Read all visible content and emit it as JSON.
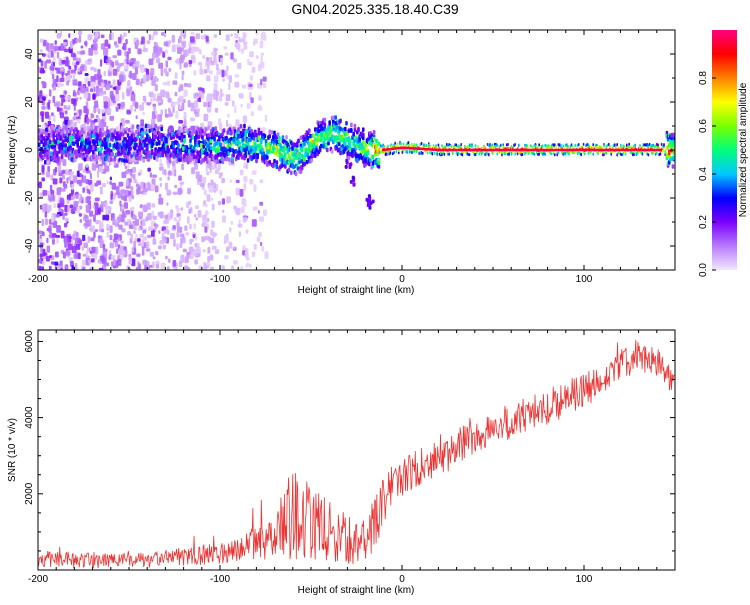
{
  "title": "GN04.2025.335.18.40.C39",
  "chart_data": [
    {
      "type": "heatmap",
      "title": "GN04.2025.335.18.40.C39",
      "xlabel": "Height of straight line (km)",
      "ylabel": "Frequency (Hz)",
      "xlim": [
        -200,
        150
      ],
      "ylim": [
        -50,
        50
      ],
      "xticks": [
        -200,
        -100,
        0,
        100
      ],
      "xtick_labels": [
        "-200",
        "-100",
        "0",
        "100"
      ],
      "yticks": [
        -40,
        -20,
        0,
        20,
        40
      ],
      "ytick_labels": [
        "-40",
        "-20",
        "0",
        "20",
        "40"
      ],
      "colorbar": {
        "label": "Normalized spectral amplitude",
        "range": [
          0,
          1
        ],
        "ticks": [
          0.0,
          0.2,
          0.4,
          0.6,
          0.8
        ],
        "tick_labels": [
          "0.0",
          "0.2",
          "0.4",
          "0.6",
          "0.8"
        ],
        "colors": [
          "#f2e6ff",
          "#b87aff",
          "#7a00ff",
          "#0000ff",
          "#00c8ff",
          "#00ff7a",
          "#7aff00",
          "#ffff00",
          "#ff8000",
          "#ff0000",
          "#ff0080"
        ]
      },
      "ridge": {
        "x": [
          -200,
          -180,
          -160,
          -140,
          -120,
          -100,
          -90,
          -80,
          -70,
          -60,
          -55,
          -50,
          -45,
          -40,
          -35,
          -30,
          -25,
          -20,
          -10,
          0,
          20,
          50,
          100,
          140,
          150
        ],
        "y": [
          2,
          3,
          2,
          3,
          2,
          2,
          3,
          2,
          0,
          -3,
          -1,
          3,
          5,
          7,
          6,
          4,
          2,
          0,
          0,
          1,
          0,
          0,
          0,
          0,
          0
        ],
        "amplitude": [
          0.3,
          0.3,
          0.3,
          0.3,
          0.35,
          0.4,
          0.45,
          0.5,
          0.55,
          0.55,
          0.55,
          0.55,
          0.55,
          0.55,
          0.55,
          0.5,
          0.5,
          0.55,
          0.9,
          0.9,
          0.95,
          0.95,
          0.95,
          0.95,
          0.6
        ]
      },
      "scatter_extent_x": [
        -200,
        -75
      ],
      "clutter": [
        {
          "x": -20,
          "y": -20
        },
        {
          "x": -18,
          "y": -22
        },
        {
          "x": -28,
          "y": -12
        },
        {
          "x": -30,
          "y": -5
        }
      ]
    },
    {
      "type": "line",
      "xlabel": "Height of straight line (km)",
      "ylabel": "SNR (10 * v/v)",
      "xlim": [
        -200,
        150
      ],
      "ylim": [
        0,
        6300
      ],
      "xticks": [
        -200,
        -100,
        0,
        100
      ],
      "xtick_labels": [
        "-200",
        "-100",
        "0",
        "100"
      ],
      "yticks": [
        2000,
        4000,
        6000
      ],
      "ytick_labels": [
        "2000",
        "4000",
        "6000"
      ],
      "color": "#ee3333",
      "series": [
        {
          "name": "SNR",
          "x": [
            -200,
            -180,
            -160,
            -140,
            -120,
            -100,
            -90,
            -80,
            -70,
            -65,
            -60,
            -55,
            -50,
            -45,
            -40,
            -35,
            -30,
            -25,
            -20,
            -15,
            -10,
            -5,
            0,
            10,
            20,
            40,
            60,
            80,
            100,
            110,
            120,
            130,
            140,
            150
          ],
          "y": [
            300,
            250,
            250,
            250,
            350,
            450,
            550,
            700,
            800,
            1100,
            1500,
            1300,
            1300,
            1100,
            1000,
            900,
            800,
            700,
            650,
            1300,
            1800,
            2300,
            2400,
            2700,
            2900,
            3500,
            3900,
            4300,
            4700,
            4900,
            5400,
            5600,
            5400,
            5000
          ],
          "noise": [
            300,
            250,
            250,
            250,
            300,
            350,
            400,
            500,
            700,
            1300,
            1500,
            1300,
            1300,
            1100,
            1000,
            900,
            800,
            700,
            700,
            900,
            800,
            800,
            700,
            600,
            600,
            600,
            600,
            600,
            600,
            600,
            500,
            500,
            500,
            500
          ]
        }
      ]
    }
  ]
}
